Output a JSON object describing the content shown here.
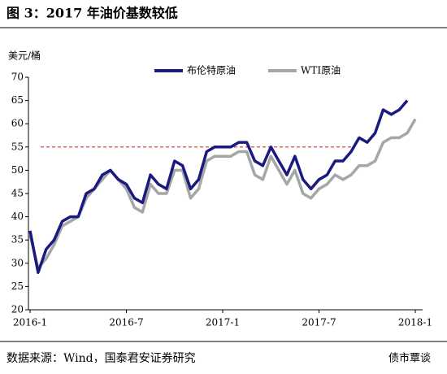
{
  "chart_data": {
    "type": "line",
    "title": "图 3：2017 年油价基数较低",
    "y_label": "美元/桶",
    "source": "数据来源：Wind，国泰君安证券研究",
    "watermark": "债市覃谈",
    "categories": [
      "2016-1",
      null,
      null,
      null,
      null,
      null,
      null,
      null,
      null,
      null,
      null,
      null,
      "2016-7",
      null,
      null,
      null,
      null,
      null,
      null,
      null,
      null,
      null,
      null,
      null,
      "2017-1",
      null,
      null,
      null,
      null,
      null,
      null,
      null,
      null,
      null,
      null,
      null,
      "2017-7",
      null,
      null,
      null,
      null,
      null,
      null,
      null,
      null,
      null,
      null,
      null,
      "2018-1"
    ],
    "series": [
      {
        "name": "布伦特原油",
        "color": "#1a1a80",
        "values": [
          37,
          28,
          33,
          35,
          39,
          40,
          40,
          45,
          46,
          49,
          50,
          48,
          47,
          44,
          43,
          49,
          47,
          46,
          52,
          51,
          46,
          48,
          54,
          55,
          55,
          55,
          56,
          56,
          52,
          51,
          55,
          52,
          49,
          53,
          48,
          46,
          48,
          49,
          52,
          52,
          54,
          57,
          56,
          58,
          63,
          62,
          63,
          65,
          null
        ]
      },
      {
        "name": "WTI原油",
        "color": "#a6a6a6",
        "values": [
          36,
          29,
          31,
          34,
          38,
          39,
          40,
          44,
          46,
          48,
          50,
          48,
          46,
          42,
          41,
          47,
          45,
          45,
          50,
          50,
          44,
          46,
          52,
          53,
          53,
          53,
          54,
          54,
          49,
          48,
          53,
          50,
          47,
          50,
          45,
          44,
          46,
          47,
          49,
          48,
          49,
          51,
          51,
          52,
          56,
          57,
          57,
          58,
          61
        ]
      }
    ],
    "reference_line": {
      "value": 55,
      "color": "#c0392b"
    },
    "ylim": [
      20,
      70
    ],
    "yticks": [
      20,
      25,
      30,
      35,
      40,
      45,
      50,
      55,
      60,
      65,
      70
    ]
  }
}
